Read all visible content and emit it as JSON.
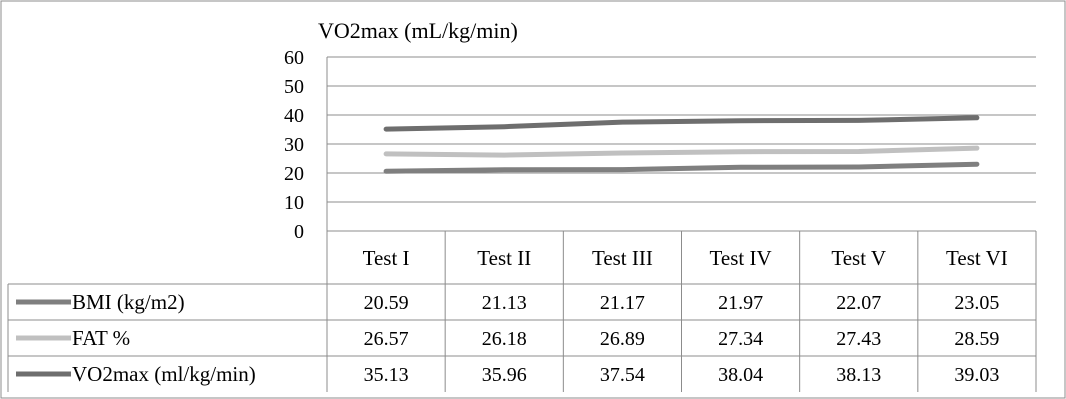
{
  "chart_data": {
    "type": "line",
    "title": "VO2max (mL/kg/min)",
    "categories": [
      "Test I",
      "Test II",
      "Test III",
      "Test IV",
      "Test V",
      "Test VI"
    ],
    "ylim": [
      0,
      60
    ],
    "yticks": [
      0,
      10,
      20,
      30,
      40,
      50,
      60
    ],
    "grid": true,
    "legend": "data-table-below",
    "series": [
      {
        "name": "BMI (kg/m2)",
        "color": "#7f7f7f",
        "values": [
          20.59,
          21.13,
          21.17,
          21.97,
          22.07,
          23.05
        ],
        "labels": [
          "20.59",
          "21.13",
          "21.17",
          "21.97",
          "22.07",
          "23.05"
        ]
      },
      {
        "name": "FAT %",
        "color": "#c0c0c0",
        "values": [
          26.57,
          26.18,
          26.89,
          27.34,
          27.43,
          28.59
        ],
        "labels": [
          "26.57",
          "26.18",
          "26.89",
          "27.34",
          "27.43",
          "28.59"
        ]
      },
      {
        "name": "VO2max (ml/kg/min)",
        "color": "#6e6e6e",
        "values": [
          35.13,
          35.96,
          37.54,
          38.04,
          38.13,
          39.03
        ],
        "labels": [
          "35.13",
          "35.96",
          "37.54",
          "38.04",
          "38.13",
          "39.03"
        ]
      }
    ]
  }
}
